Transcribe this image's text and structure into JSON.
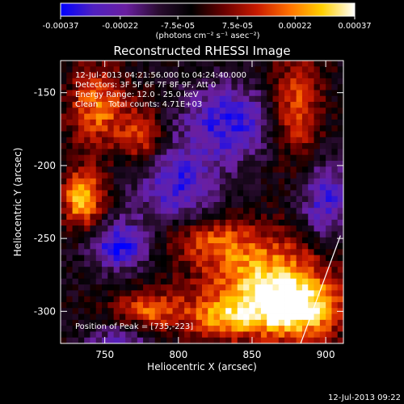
{
  "chart_data": {
    "type": "heatmap",
    "title": "Reconstructed RHESSI Image",
    "xlabel": "Heliocentric X (arcsec)",
    "ylabel": "Heliocentric Y (arcsec)",
    "xlim": [
      720,
      912
    ],
    "ylim": [
      -322,
      -128
    ],
    "x_ticks": [
      750,
      800,
      850,
      900
    ],
    "y_ticks": [
      -300,
      -250,
      -200,
      -150
    ],
    "colorbar": {
      "label": "(photons cm⁻² s⁻¹ asec⁻²)",
      "range": [
        -0.00037,
        0.00037
      ],
      "tick_values": [
        -0.00037,
        -0.00022,
        -7.5e-05,
        7.5e-05,
        0.00022,
        0.00037
      ],
      "tick_labels": [
        "-0.00037",
        "-0.00022",
        "-7.5e-05",
        "7.5e-05",
        "0.00022",
        "0.00037"
      ],
      "colors": [
        "#0000ff",
        "#5020c0",
        "#6a1fa0",
        "#2a0c30",
        "#000000",
        "#6a0000",
        "#c81a00",
        "#ff7000",
        "#ffd000",
        "#ffffff"
      ]
    },
    "annotations": [
      "12-Jul-2013 04:21:56.000 to 04:24:40.000",
      "Detectors: 3F 5F 6F 7F 8F 9F, Att 0",
      "Energy Range: 12.0 - 25.0 keV",
      "Clean    Total counts: 4.71E+03"
    ],
    "peak_text": "Position of Peak = [735,-223]",
    "peak": [
      735,
      -223
    ],
    "grid": false,
    "sources": [
      {
        "x": 735,
        "y": -223,
        "amp": 0.00035,
        "sx": 10,
        "sy": 14
      },
      {
        "x": 745,
        "y": -160,
        "amp": 0.00026,
        "sx": 14,
        "sy": 20
      },
      {
        "x": 775,
        "y": -180,
        "amp": 0.00022,
        "sx": 10,
        "sy": 14
      },
      {
        "x": 880,
        "y": -160,
        "amp": 0.00025,
        "sx": 12,
        "sy": 25
      },
      {
        "x": 820,
        "y": -250,
        "amp": 0.0002,
        "sx": 22,
        "sy": 12
      },
      {
        "x": 860,
        "y": -280,
        "amp": 0.00034,
        "sx": 30,
        "sy": 22
      },
      {
        "x": 880,
        "y": -300,
        "amp": 0.00033,
        "sx": 22,
        "sy": 14
      },
      {
        "x": 780,
        "y": -300,
        "amp": 0.00024,
        "sx": 20,
        "sy": 10
      },
      {
        "x": 830,
        "y": -305,
        "amp": 0.00022,
        "sx": 15,
        "sy": 10
      },
      {
        "x": 760,
        "y": -255,
        "amp": -0.0003,
        "sx": 14,
        "sy": 12
      },
      {
        "x": 800,
        "y": -215,
        "amp": -0.00025,
        "sx": 20,
        "sy": 20
      },
      {
        "x": 835,
        "y": -170,
        "amp": -0.00027,
        "sx": 22,
        "sy": 18
      },
      {
        "x": 900,
        "y": -225,
        "amp": -0.00024,
        "sx": 12,
        "sy": 20
      },
      {
        "x": 760,
        "y": -320,
        "amp": -0.00018,
        "sx": 16,
        "sy": 10
      }
    ],
    "limb_line": [
      [
        883,
        -322
      ],
      [
        910,
        -248
      ]
    ]
  },
  "footer": {
    "timestamp": "12-Jul-2013 09:22"
  }
}
